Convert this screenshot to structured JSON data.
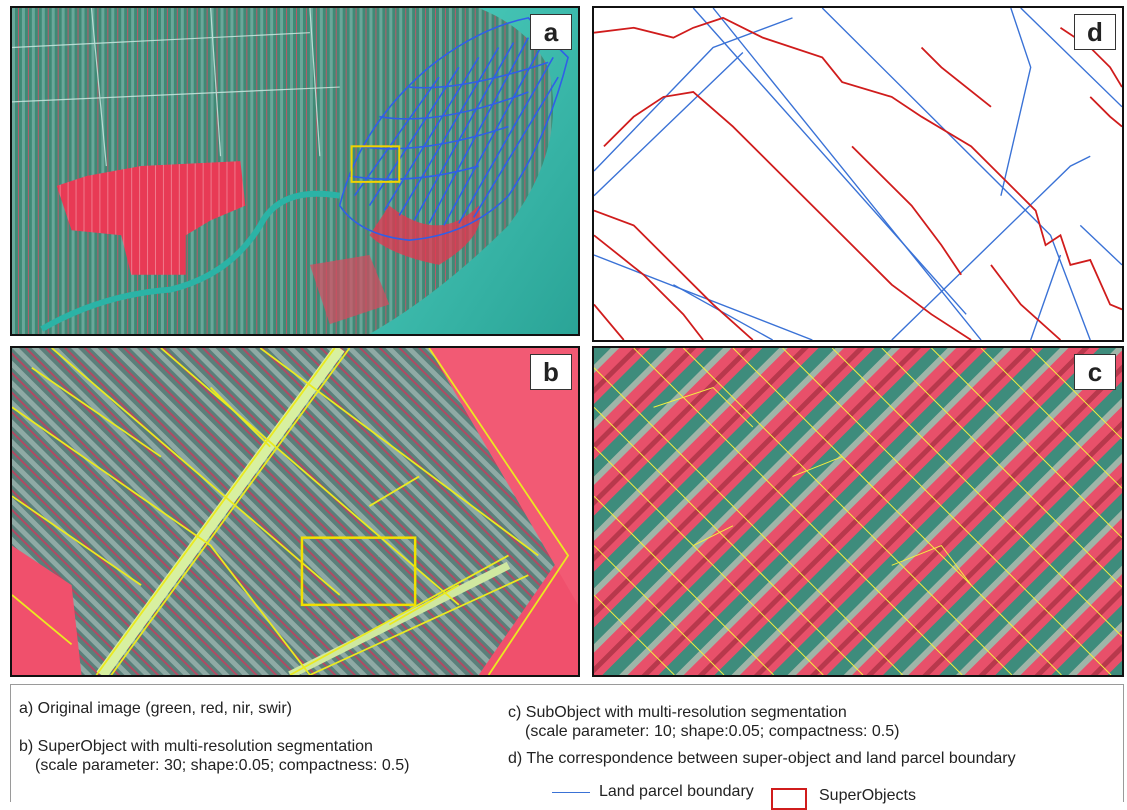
{
  "panels": {
    "a": {
      "label": "a"
    },
    "b": {
      "label": "b"
    },
    "c": {
      "label": "c"
    },
    "d": {
      "label": "d"
    }
  },
  "caption": {
    "a": "a) Original image (green, red, nir, swir)",
    "b_line1": "b) SuperObject with multi-resolution segmentation",
    "b_line2": "(scale parameter: 30; shape:0.05; compactness: 0.5)",
    "c_line1": "c) SubObject with multi-resolution segmentation",
    "c_line2": "(scale parameter: 10; shape:0.05; compactness: 0.5)",
    "d": "d) The correspondence between super-object and land parcel boundary"
  },
  "legend": {
    "parcel_label": "Land parcel boundary",
    "superobject_label": "SuperObjects"
  },
  "colors": {
    "parcel_boundary": "#3a72d6",
    "superobject_boundary": "#d01c1c",
    "segmentation_outline": "#e8e81a",
    "vegetation_red": "#e8344f",
    "water_cyan": "#2fb3a4"
  }
}
